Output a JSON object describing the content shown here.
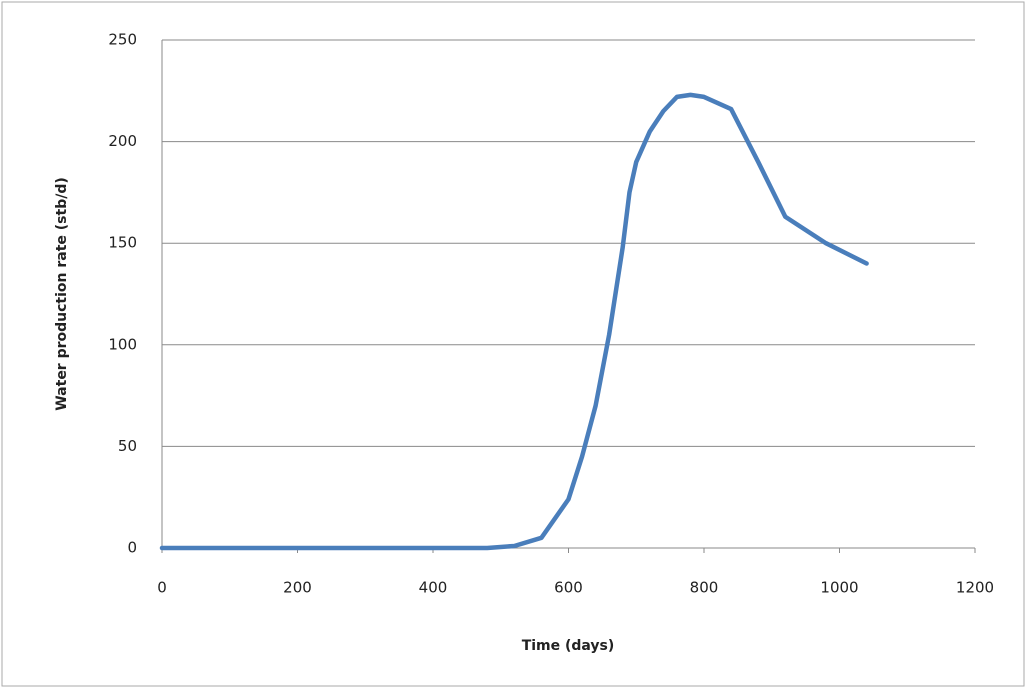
{
  "chart_data": {
    "type": "line",
    "x_label": "Time (days)",
    "y_label": "Water production rate (stb/d)",
    "x": [
      0,
      480,
      520,
      560,
      600,
      620,
      640,
      660,
      680,
      690,
      700,
      720,
      740,
      760,
      780,
      800,
      840,
      880,
      920,
      980,
      1040
    ],
    "series": [
      {
        "color": "#4a7ebb",
        "values": [
          0,
          0,
          1,
          5,
          24,
          45,
          70,
          105,
          148,
          175,
          190,
          205,
          215,
          222,
          223,
          222,
          216,
          190,
          163,
          150,
          140
        ]
      }
    ],
    "xlim": [
      0,
      1200
    ],
    "xticks": [
      0,
      200,
      400,
      600,
      800,
      1000,
      1200
    ],
    "ylim": [
      0,
      250
    ],
    "yticks": [
      0,
      50,
      100,
      150,
      200,
      250
    ],
    "grid": true
  }
}
